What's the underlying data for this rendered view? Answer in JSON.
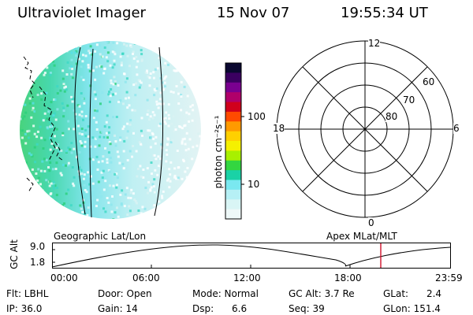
{
  "header": {
    "title": "Ultraviolet Imager",
    "date": "15 Nov 07",
    "time": "19:55:34 UT"
  },
  "colorbar": {
    "label": "photon cm⁻²s⁻¹",
    "ticks": [
      "100",
      "10"
    ],
    "colors": [
      "#0a0830",
      "#3a0060",
      "#7a0090",
      "#b0006a",
      "#d0001c",
      "#ff4a00",
      "#ff9a00",
      "#ffd000",
      "#f5f000",
      "#a8f000",
      "#33d640",
      "#1ad2a6",
      "#7ae8f0",
      "#b6f0f5",
      "#d9f5f5",
      "#eef8f8"
    ]
  },
  "polar": {
    "labels": {
      "top": "12",
      "bottom": "0",
      "left": "18",
      "right": "6"
    },
    "rings": [
      "60",
      "70",
      "80"
    ]
  },
  "timeline": {
    "left_title": "Geographic Lat/Lon",
    "right_title": "Apex  MLat/MLT",
    "y_label": "GC Alt",
    "y_top": "9.0",
    "y_bottom": "1.8",
    "x_ticks": [
      "00:00",
      "06:00",
      "12:00",
      "18:00",
      "23:59"
    ],
    "marker_color": "#d0102a"
  },
  "info": {
    "flt": "Flt: LBHL",
    "ip": "IP: 36.0",
    "door": "Door: Open",
    "gain": "Gain: 14",
    "mode": "Mode: Normal",
    "dsp": "Dsp:      6.6",
    "gcalt": "GC Alt: 3.7 Re",
    "seq": "Seq: 39",
    "glat": "GLat:      2.4",
    "glon": "GLon: 151.4"
  }
}
